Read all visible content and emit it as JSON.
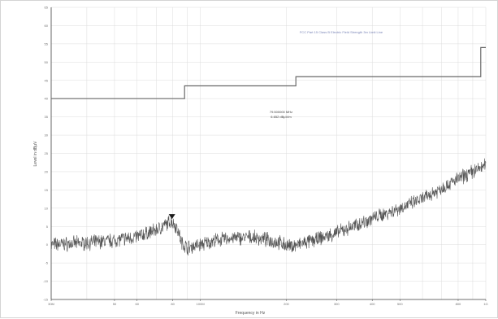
{
  "chart_data": {
    "type": "line",
    "xlabel": "Frequency in Hz",
    "ylabel": "Level in dBµV",
    "xscale": "log",
    "xlim": [
      30000000,
      1000000000
    ],
    "ylim": [
      -15,
      65
    ],
    "grid": true,
    "x_tick_labels": [
      {
        "value": 30000000,
        "label": "30M"
      },
      {
        "value": 50000000,
        "label": "50"
      },
      {
        "value": 60000000,
        "label": "60"
      },
      {
        "value": 80000000,
        "label": "80"
      },
      {
        "value": 100000000,
        "label": "100M"
      },
      {
        "value": 200000000,
        "label": "200"
      },
      {
        "value": 300000000,
        "label": "300"
      },
      {
        "value": 400000000,
        "label": "400"
      },
      {
        "value": 500000000,
        "label": "500"
      },
      {
        "value": 800000000,
        "label": "800"
      },
      {
        "value": 1000000000,
        "label": "1G"
      }
    ],
    "y_ticks": [
      -15,
      -10,
      -5,
      0,
      5,
      10,
      15,
      20,
      25,
      30,
      35,
      40,
      45,
      50,
      55,
      60,
      65
    ],
    "series": [
      {
        "name": "FCC Part 15 Class B Electric Field Strength 3m Limit Line",
        "color": "#6a6a6a",
        "style": "step",
        "x": [
          30000000,
          88000000,
          88000000,
          216000000,
          216000000,
          960000000,
          960000000,
          1000000000
        ],
        "y": [
          40,
          40,
          43.5,
          43.5,
          46,
          46,
          54,
          54
        ]
      },
      {
        "name": "",
        "color": "#555555",
        "style": "noisy",
        "x": [
          30000000,
          40000000,
          50000000,
          60000000,
          70000000,
          76000000,
          79000000,
          83000000,
          86000000,
          90000000,
          100000000,
          115000000,
          130000000,
          150000000,
          170000000,
          190000000,
          205000000,
          220000000,
          250000000,
          300000000,
          350000000,
          400000000,
          500000000,
          600000000,
          700000000,
          800000000,
          900000000,
          1000000000
        ],
        "y": [
          0,
          0.5,
          1.2,
          2.2,
          4.0,
          5.5,
          6.6,
          4.5,
          0.5,
          -0.8,
          0,
          1.3,
          1.8,
          2.0,
          1.4,
          0.5,
          -0.5,
          0,
          1.2,
          3.2,
          5.3,
          7.2,
          10.0,
          12.5,
          15.5,
          18.0,
          20.0,
          21.8
        ]
      }
    ],
    "marker": {
      "x": 79500000,
      "y": 6.6,
      "label_lines": [
        "79.500000 MHz",
        "6.652 dBµV/m"
      ]
    }
  },
  "legend": {
    "text": "FCC Part 15 Class B Electric Field Strength 3m Limit Line"
  },
  "marker_label": {
    "line1": "79.500000 MHz",
    "line2": "6.652 dBµV/m"
  },
  "colors": {
    "grid": "#dcdcdc",
    "axis": "#444444",
    "legend": "#7b86b8"
  }
}
